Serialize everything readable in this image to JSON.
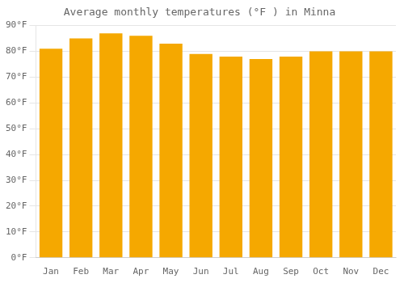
{
  "chart_data": {
    "type": "bar",
    "title": "Average monthly temperatures (°F ) in Minna",
    "categories": [
      "Jan",
      "Feb",
      "Mar",
      "Apr",
      "May",
      "Jun",
      "Jul",
      "Aug",
      "Sep",
      "Oct",
      "Nov",
      "Dec"
    ],
    "values": [
      81,
      85,
      87,
      86,
      83,
      79,
      78,
      77,
      78,
      80,
      80,
      80
    ],
    "color": "#F5A800",
    "ylim": [
      0,
      90
    ],
    "yticks": [
      {
        "value": 0,
        "label": "0°F"
      },
      {
        "value": 10,
        "label": "10°F"
      },
      {
        "value": 20,
        "label": "20°F"
      },
      {
        "value": 30,
        "label": "30°F"
      },
      {
        "value": 40,
        "label": "40°F"
      },
      {
        "value": 50,
        "label": "50°F"
      },
      {
        "value": 60,
        "label": "60°F"
      },
      {
        "value": 70,
        "label": "70°F"
      },
      {
        "value": 80,
        "label": "80°F"
      },
      {
        "value": 90,
        "label": "90°F"
      }
    ],
    "grid": true
  }
}
